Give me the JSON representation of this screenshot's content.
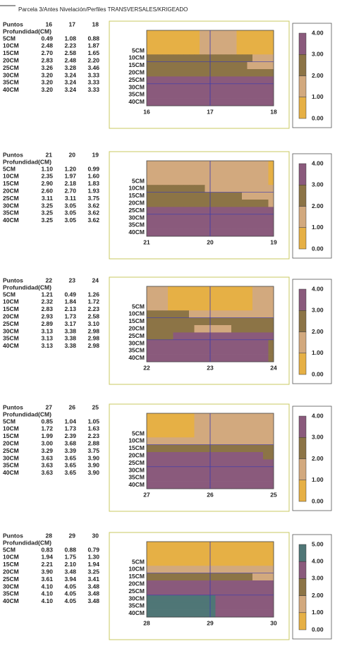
{
  "title": "Parcela 3/Antes Nivelación/Perfiles TRANSVERSALES/KRIGEADO",
  "panels": [
    {
      "puntos": "Puntos",
      "points": [
        "16",
        "17",
        "18"
      ],
      "depth_header": "Profundidad(CM)",
      "rows": [
        [
          "5CM",
          "0.49",
          "1.08",
          "0.88"
        ],
        [
          "10CM",
          "2.48",
          "2.23",
          "1.87"
        ],
        [
          "15CM",
          "2.70",
          "2.58",
          "1.65"
        ],
        [
          "20CM",
          "2.83",
          "2.48",
          "2.20"
        ],
        [
          "25CM",
          "3.26",
          "3.28",
          "3.46"
        ],
        [
          "30CM",
          "3.20",
          "3.24",
          "3.33"
        ],
        [
          "35CM",
          "3.20",
          "3.24",
          "3.33"
        ],
        [
          "40CM",
          "3.20",
          "3.24",
          "3.33"
        ]
      ],
      "legend": [
        "4.00",
        "3.00",
        "2.00",
        "1.00",
        "0.00"
      ]
    },
    {
      "puntos": "Puntos",
      "points": [
        "21",
        "20",
        "19"
      ],
      "depth_header": "Profundidad(CM)",
      "rows": [
        [
          "5CM",
          "1.10",
          "1.20",
          "0.99"
        ],
        [
          "10CM",
          "2.35",
          "1.97",
          "1.60"
        ],
        [
          "15CM",
          "2.90",
          "2.18",
          "1.83"
        ],
        [
          "20CM",
          "2.60",
          "2.70",
          "1.93"
        ],
        [
          "25CM",
          "3.11",
          "3.11",
          "3.75"
        ],
        [
          "30CM",
          "3.25",
          "3.05",
          "3.62"
        ],
        [
          "35CM",
          "3.25",
          "3.05",
          "3.62"
        ],
        [
          "40CM",
          "3.25",
          "3.05",
          "3.62"
        ]
      ],
      "legend": [
        "4.00",
        "3.00",
        "2.00",
        "1.00",
        "0.00"
      ]
    },
    {
      "puntos": "Puntos",
      "points": [
        "22",
        "23",
        "24"
      ],
      "depth_header": "Profundidad(CM)",
      "rows": [
        [
          "5CM",
          "1.21",
          "0.49",
          "1.26"
        ],
        [
          "10CM",
          "2.32",
          "1.84",
          "1.72"
        ],
        [
          "15CM",
          "2.83",
          "2.13",
          "2.23"
        ],
        [
          "20CM",
          "2.93",
          "1.73",
          "2.58"
        ],
        [
          "25CM",
          "2.89",
          "3.17",
          "3.10"
        ],
        [
          "30CM",
          "3.13",
          "3.38",
          "2.98"
        ],
        [
          "35CM",
          "3.13",
          "3.38",
          "2.98"
        ],
        [
          "40CM",
          "3.13",
          "3.38",
          "2.98"
        ]
      ],
      "legend": [
        "4.00",
        "3.00",
        "2.00",
        "1.00",
        "0.00"
      ]
    },
    {
      "puntos": "Puntos",
      "points": [
        "27",
        "26",
        "25"
      ],
      "depth_header": "Profundidad(CM)",
      "rows": [
        [
          "5CM",
          "0.85",
          "1.04",
          "1.05"
        ],
        [
          "10CM",
          "1.72",
          "1.73",
          "1.63"
        ],
        [
          "15CM",
          "1.99",
          "2.39",
          "2.23"
        ],
        [
          "20CM",
          "3.00",
          "3.68",
          "2.88"
        ],
        [
          "25CM",
          "3.29",
          "3.39",
          "3.75"
        ],
        [
          "30CM",
          "3.63",
          "3.65",
          "3.90"
        ],
        [
          "35CM",
          "3.63",
          "3.65",
          "3.90"
        ],
        [
          "40CM",
          "3.63",
          "3.65",
          "3.90"
        ]
      ],
      "legend": [
        "4.00",
        "3.00",
        "2.00",
        "1.00",
        "0.00"
      ]
    },
    {
      "puntos": "Puntos",
      "points": [
        "28",
        "29",
        "30"
      ],
      "depth_header": "Profundidad(CM)",
      "rows": [
        [
          "5CM",
          "0.83",
          "0.88",
          "0.79"
        ],
        [
          "10CM",
          "1.94",
          "1.75",
          "1.30"
        ],
        [
          "15CM",
          "2.21",
          "2.10",
          "1.94"
        ],
        [
          "20CM",
          "3.90",
          "3.48",
          "3.25"
        ],
        [
          "25CM",
          "3.61",
          "3.94",
          "3.41"
        ],
        [
          "30CM",
          "4.10",
          "4.05",
          "3.48"
        ],
        [
          "35CM",
          "4.10",
          "4.05",
          "3.48"
        ],
        [
          "40CM",
          "4.10",
          "4.05",
          "3.48"
        ]
      ],
      "legend": [
        "5.00",
        "4.00",
        "3.00",
        "2.00",
        "1.00",
        "0.00"
      ]
    }
  ]
}
